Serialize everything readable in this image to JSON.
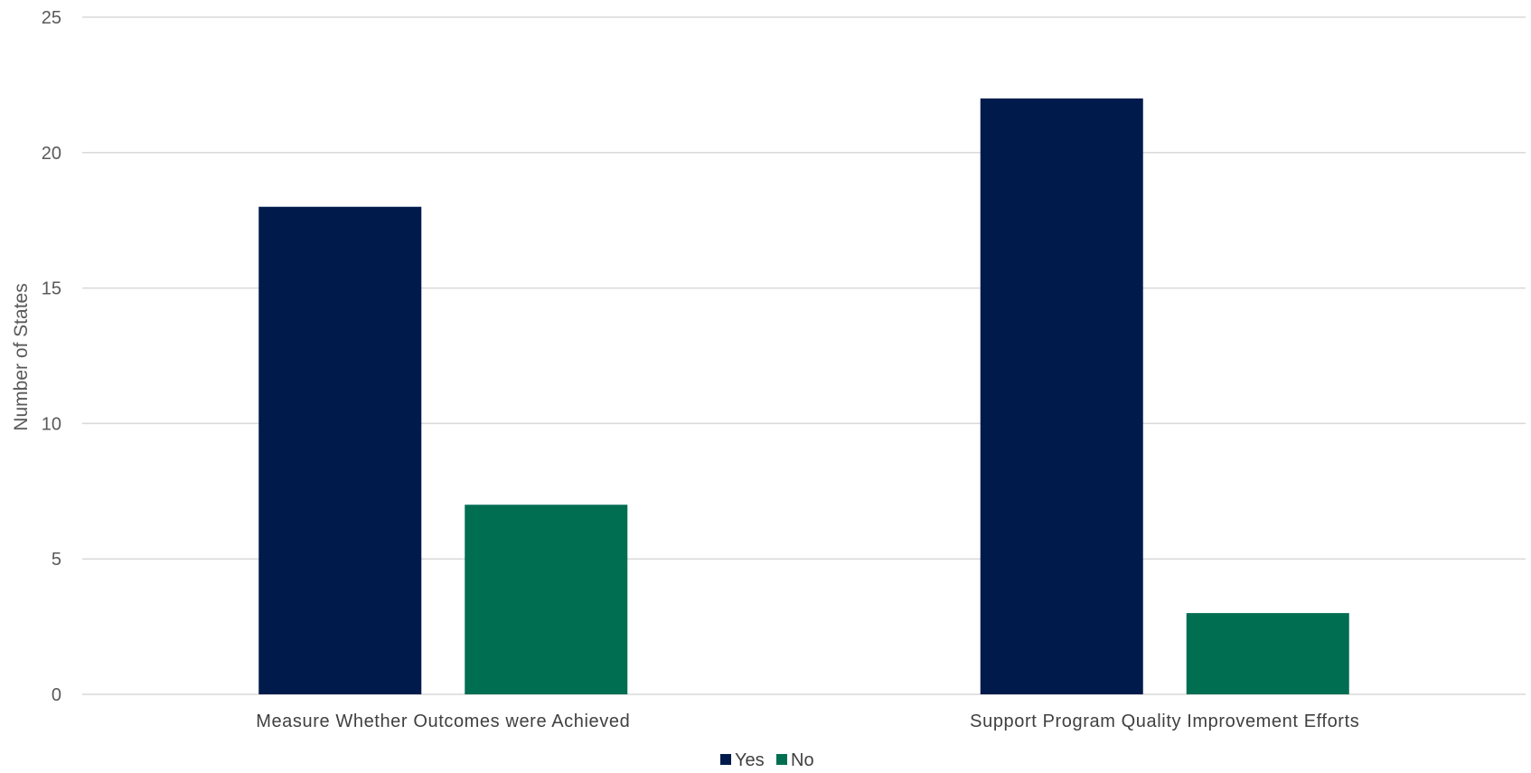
{
  "chart_data": {
    "type": "bar",
    "title": "",
    "xlabel": "",
    "ylabel": "Number of States",
    "ylim": [
      0,
      25
    ],
    "yticks": [
      0,
      5,
      10,
      15,
      20,
      25
    ],
    "grid": true,
    "legend_position": "bottom",
    "categories": [
      "Measure Whether Outcomes were Achieved",
      "Support Program Quality Improvement Efforts"
    ],
    "series": [
      {
        "name": "Yes",
        "values": [
          18,
          22
        ],
        "color": "#001b4b"
      },
      {
        "name": "No",
        "values": [
          7,
          3
        ],
        "color": "#006e51"
      }
    ]
  }
}
